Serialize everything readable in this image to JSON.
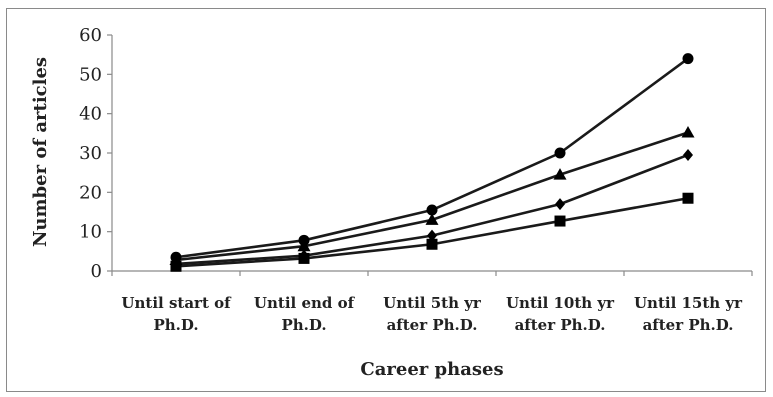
{
  "chart_data": {
    "type": "line",
    "title": "",
    "xlabel": "Career phases",
    "ylabel": "Number of articles",
    "ylim": [
      0,
      60
    ],
    "yticks": [
      0,
      10,
      20,
      30,
      40,
      50,
      60
    ],
    "grid": false,
    "legend": "none",
    "categories": [
      [
        "Until start of",
        "Ph.D."
      ],
      [
        "Until end of",
        "Ph.D."
      ],
      [
        "Until 5th yr",
        "after Ph.D."
      ],
      [
        "Until 10th yr",
        "after Ph.D."
      ],
      [
        "Until 15th yr",
        "after Ph.D."
      ]
    ],
    "series": [
      {
        "marker": "circle",
        "values": [
          3.5,
          7.8,
          15.5,
          30.0,
          54.0
        ]
      },
      {
        "marker": "triangle",
        "values": [
          2.8,
          6.3,
          13.0,
          24.5,
          35.2
        ]
      },
      {
        "marker": "diamond",
        "values": [
          1.8,
          3.9,
          9.0,
          17.0,
          29.5
        ]
      },
      {
        "marker": "square",
        "values": [
          1.2,
          3.2,
          6.8,
          12.7,
          18.5
        ]
      }
    ],
    "line_color": "#1a1a1a",
    "marker_color": "#000000",
    "axis_color": "#8a8a8a"
  }
}
